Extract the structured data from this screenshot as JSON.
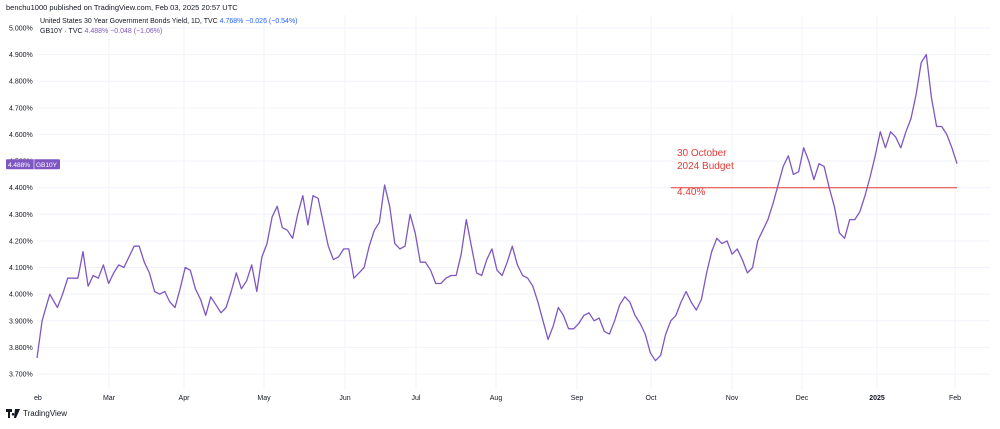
{
  "header": {
    "published": "benchu1000 published on TradingView.com, Feb 03, 2025 20:57 UTC"
  },
  "legend": {
    "row1_title": "United States 30 Year Government Bonds Yield, 1D, TVC",
    "row1_value": "4.768%",
    "row1_change": "−0.026 (−0.54%)",
    "row2_title": "GB10Y · TVC",
    "row2_value": "4.488%",
    "row2_change": "−0.048 (−1.06%)"
  },
  "price_badge": {
    "value": "4.488%",
    "symbol": "GB10Y"
  },
  "annotation": {
    "line1": "30 October",
    "line2": "2024 Budget",
    "level_label": "4.40%"
  },
  "footer": {
    "brand": "TradingView"
  },
  "colors": {
    "series": "#7e57c2",
    "annotation": "#e53935",
    "grid": "#f0f3fa",
    "axis_text": "#131722",
    "badge": "#7e57c2"
  },
  "chart_data": {
    "type": "line",
    "title": "",
    "xlabel": "",
    "ylabel": "",
    "ylim": [
      3.65,
      5.04
    ],
    "yticks": [
      "5.000%",
      "4.900%",
      "4.800%",
      "4.700%",
      "4.600%",
      "4.500%",
      "4.400%",
      "4.300%",
      "4.200%",
      "4.100%",
      "4.000%",
      "3.900%",
      "3.800%",
      "3.700%"
    ],
    "xticks": [
      "Mar",
      "Apr",
      "May",
      "Jun",
      "Jul",
      "Aug",
      "Sep",
      "Oct",
      "Nov",
      "Dec",
      "2025",
      "Feb"
    ],
    "xtick_partial_first": "eb",
    "series": [
      {
        "name": "GB10Y",
        "x": [
          0,
          2,
          5,
          8,
          10,
          12,
          14,
          16,
          18,
          20,
          22,
          24,
          26,
          28,
          30,
          32,
          34,
          36,
          38,
          40,
          42,
          44,
          46,
          48,
          50,
          52,
          54,
          56,
          58,
          60,
          62,
          64,
          66,
          68,
          70,
          72,
          74,
          76,
          78,
          80,
          82,
          84,
          86,
          88,
          90,
          92,
          94,
          96,
          98,
          100,
          102,
          104,
          106,
          108,
          110,
          112,
          114,
          116,
          118,
          120,
          122,
          124,
          126,
          128,
          130,
          132,
          134,
          136,
          138,
          140,
          142,
          144,
          146,
          148,
          150,
          152,
          154,
          156,
          158,
          160,
          162,
          164,
          166,
          168,
          170,
          172,
          174,
          176,
          178,
          180,
          182,
          184,
          186,
          188,
          190,
          192,
          194,
          196,
          198,
          200,
          202,
          204,
          206,
          208,
          210,
          212,
          214,
          216,
          218,
          220,
          222,
          224,
          226,
          228,
          230,
          232,
          234,
          236,
          238,
          240,
          242,
          244,
          246,
          248,
          250,
          252,
          254,
          256,
          258,
          260,
          262,
          264,
          266,
          268,
          270,
          272,
          274,
          276,
          278,
          280,
          282,
          284,
          286,
          288,
          290,
          292,
          294,
          296,
          298,
          300,
          302,
          304,
          306,
          308,
          310,
          312,
          314,
          316,
          318,
          320,
          322,
          324,
          326,
          328,
          330,
          332,
          334,
          336,
          338,
          340,
          342,
          344,
          346,
          348,
          350,
          352,
          354,
          356,
          358,
          360
        ],
        "values": [
          3.76,
          3.9,
          4.0,
          3.95,
          4.0,
          4.06,
          4.06,
          4.06,
          4.16,
          4.03,
          4.07,
          4.06,
          4.11,
          4.04,
          4.08,
          4.11,
          4.1,
          4.14,
          4.18,
          4.18,
          4.12,
          4.08,
          4.01,
          4.0,
          4.01,
          3.97,
          3.95,
          4.02,
          4.1,
          4.09,
          4.02,
          3.98,
          3.92,
          3.99,
          3.96,
          3.93,
          3.95,
          4.01,
          4.08,
          4.02,
          4.05,
          4.11,
          4.01,
          4.14,
          4.19,
          4.29,
          4.33,
          4.25,
          4.24,
          4.21,
          4.3,
          4.37,
          4.26,
          4.37,
          4.36,
          4.27,
          4.18,
          4.13,
          4.14,
          4.17,
          4.17,
          4.06,
          4.08,
          4.1,
          4.18,
          4.24,
          4.27,
          4.41,
          4.33,
          4.19,
          4.17,
          4.18,
          4.3,
          4.23,
          4.12,
          4.12,
          4.09,
          4.04,
          4.04,
          4.06,
          4.07,
          4.07,
          4.15,
          4.28,
          4.18,
          4.08,
          4.07,
          4.13,
          4.17,
          4.09,
          4.07,
          4.12,
          4.18,
          4.11,
          4.07,
          4.06,
          4.03,
          3.97,
          3.9,
          3.83,
          3.88,
          3.95,
          3.92,
          3.87,
          3.87,
          3.89,
          3.92,
          3.93,
          3.9,
          3.91,
          3.86,
          3.85,
          3.9,
          3.96,
          3.99,
          3.97,
          3.92,
          3.89,
          3.85,
          3.78,
          3.75,
          3.77,
          3.85,
          3.9,
          3.92,
          3.97,
          4.01,
          3.97,
          3.94,
          3.98,
          4.08,
          4.16,
          4.21,
          4.19,
          4.2,
          4.15,
          4.17,
          4.13,
          4.08,
          4.1,
          4.2,
          4.24,
          4.28,
          4.34,
          4.41,
          4.48,
          4.52,
          4.45,
          4.46,
          4.55,
          4.5,
          4.43,
          4.49,
          4.48,
          4.4,
          4.33,
          4.23,
          4.21,
          4.28,
          4.28,
          4.31,
          4.37,
          4.44,
          4.52,
          4.61,
          4.55,
          4.61,
          4.59,
          4.55,
          4.61,
          4.66,
          4.75,
          4.87,
          4.9,
          4.74,
          4.63,
          4.63,
          4.6,
          4.55,
          4.49
        ]
      }
    ],
    "reference_line": {
      "value": 4.4,
      "label": "4.40%",
      "x_start": 248,
      "x_end": 360
    },
    "grid": true,
    "legend_position": "top-left"
  }
}
